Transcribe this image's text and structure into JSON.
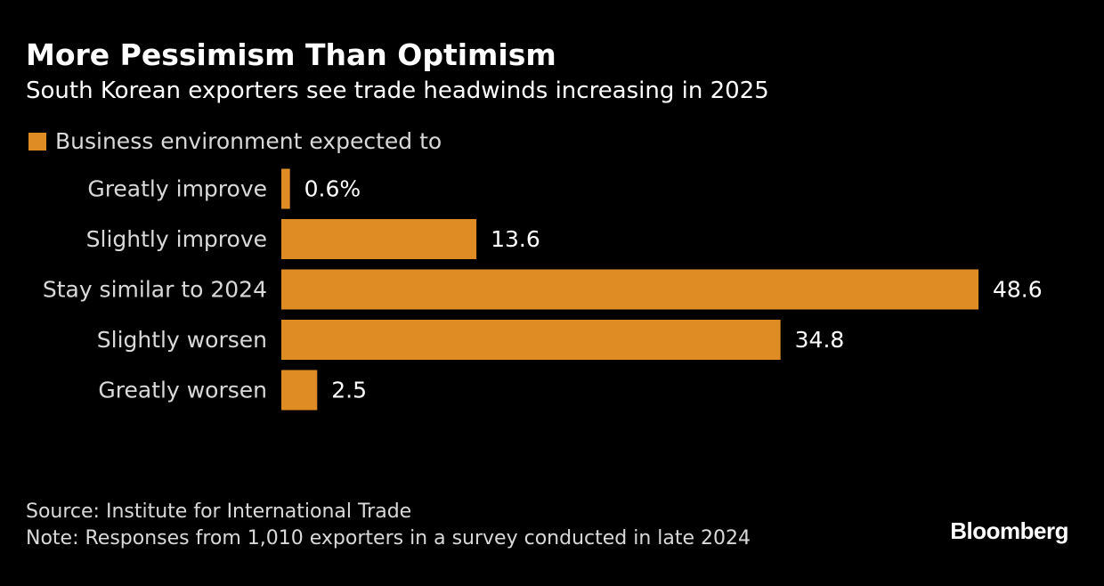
{
  "header": {
    "title": "More Pessimism Than Optimism",
    "subtitle": "South Korean exporters see trade headwinds increasing in 2025"
  },
  "footer": {
    "source": "Source: Institute for International Trade",
    "note": "Note: Responses from 1,010 exporters in a survey conducted in late 2024"
  },
  "brand": {
    "logo": "Bloomberg"
  },
  "colors": {
    "background": "#000000",
    "bar": "#e08c25",
    "text": "#ffffff",
    "muted_text": "#d9d9d9"
  },
  "chart_data": {
    "type": "bar",
    "orientation": "horizontal",
    "categories": [
      "Greatly improve",
      "Slightly improve",
      "Stay similar to 2024",
      "Slightly worsen",
      "Greatly worsen"
    ],
    "series": [
      {
        "name": "Business environment expected to",
        "values": [
          0.6,
          13.6,
          48.6,
          34.8,
          2.5
        ]
      }
    ],
    "value_labels": [
      "0.6%",
      "13.6",
      "48.6",
      "34.8",
      "2.5"
    ],
    "xlim": [
      0,
      50
    ],
    "unit": "%",
    "grid": false,
    "legend": "top-left"
  }
}
